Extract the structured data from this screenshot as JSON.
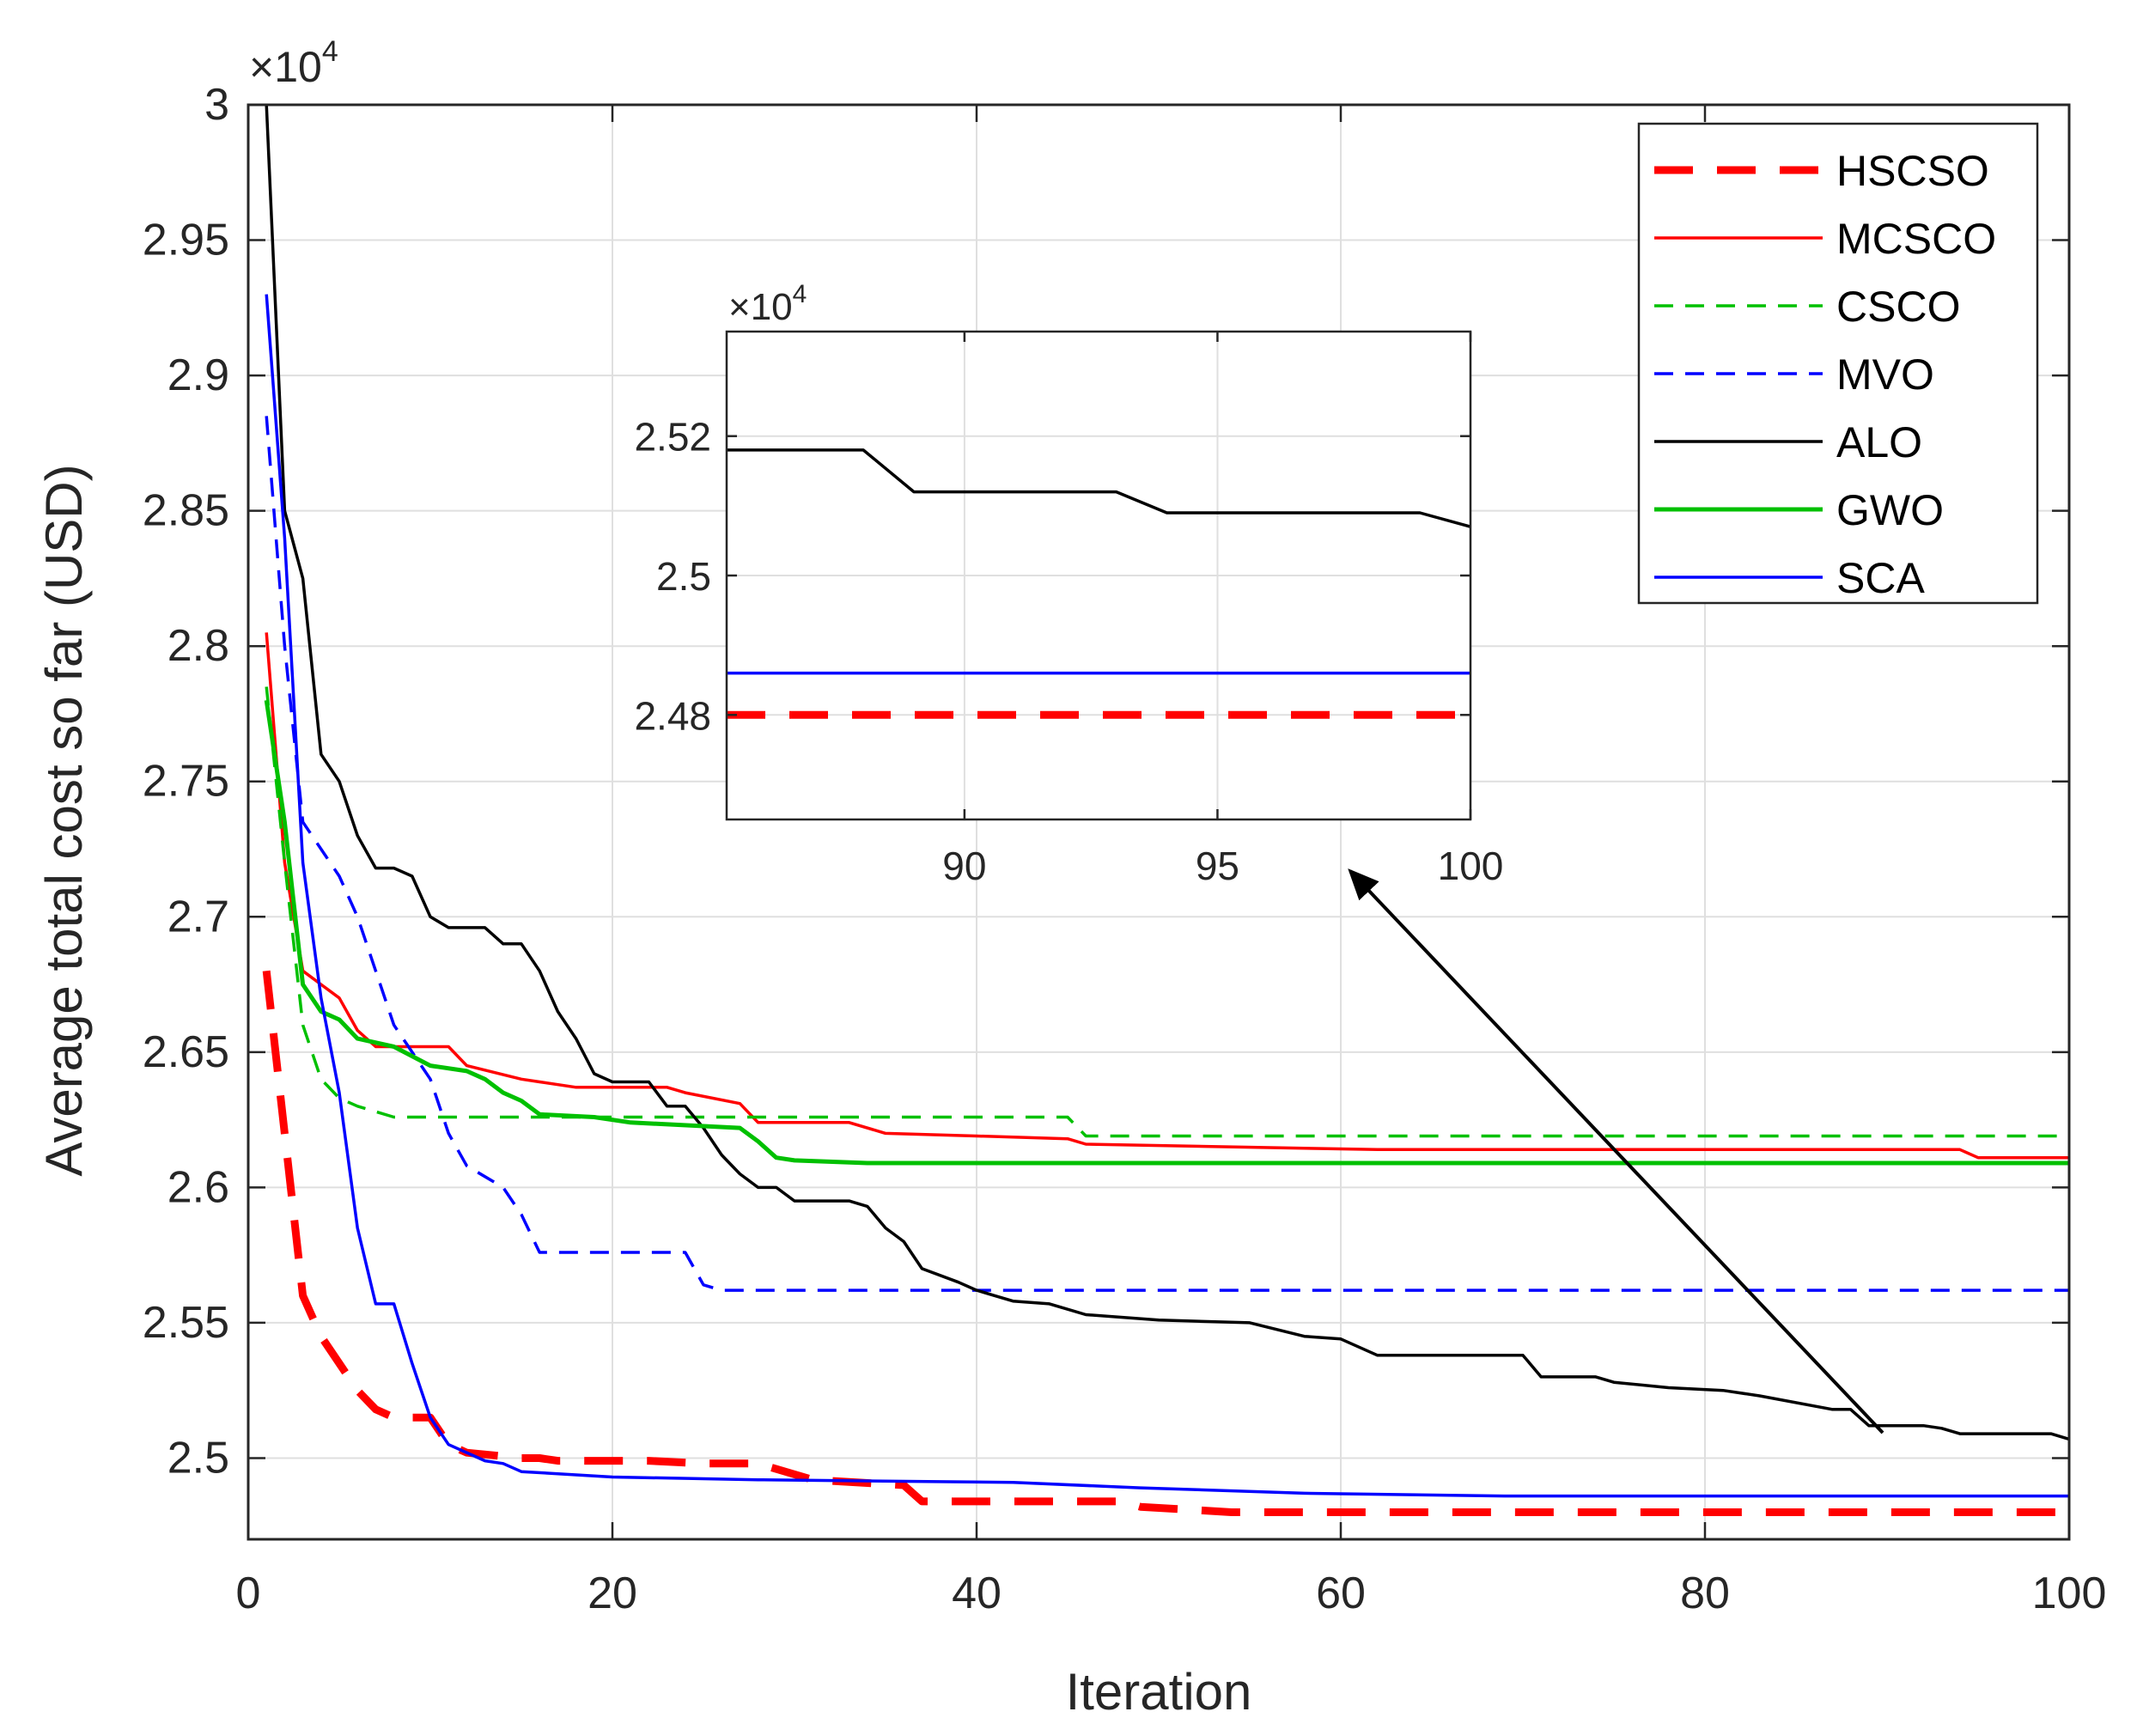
{
  "chart_data": {
    "type": "line",
    "xlabel": "Iteration",
    "ylabel": "Average total cost so far (USD)",
    "y_multiplier": "×10",
    "y_exponent": "4",
    "xlim": [
      0,
      100
    ],
    "ylim": [
      24.7,
      30.0
    ],
    "x_ticks": [
      0,
      20,
      40,
      60,
      80,
      100
    ],
    "y_ticks": [
      2.5,
      2.55,
      2.6,
      2.65,
      2.7,
      2.75,
      2.8,
      2.85,
      2.9,
      2.95,
      3
    ],
    "grid": true,
    "legend_position": "top-right",
    "colors": {
      "HSCSO": "#ff0000",
      "MCSCO": "#ff0000",
      "CSCO": "#00c000",
      "MVO": "#0000ff",
      "ALO": "#000000",
      "GWO": "#00c000",
      "SCA": "#0000ff"
    },
    "series": [
      {
        "name": "HSCSO",
        "style": "dashed-thick",
        "points": [
          [
            1,
            26.8
          ],
          [
            2,
            26.2
          ],
          [
            3,
            25.6
          ],
          [
            4,
            25.45
          ],
          [
            5,
            25.35
          ],
          [
            6,
            25.25
          ],
          [
            7,
            25.18
          ],
          [
            8,
            25.15
          ],
          [
            10,
            25.15
          ],
          [
            11,
            25.05
          ],
          [
            12,
            25.02
          ],
          [
            15,
            25.0
          ],
          [
            16,
            25.0
          ],
          [
            17,
            24.99
          ],
          [
            22,
            24.99
          ],
          [
            25,
            24.98
          ],
          [
            28,
            24.98
          ],
          [
            31,
            24.92
          ],
          [
            36,
            24.9
          ],
          [
            37,
            24.84
          ],
          [
            48,
            24.84
          ],
          [
            49,
            24.82
          ],
          [
            54,
            24.8
          ],
          [
            100,
            24.8
          ]
        ]
      },
      {
        "name": "MCSCO",
        "style": "solid",
        "points": [
          [
            1,
            28.05
          ],
          [
            2,
            27.2
          ],
          [
            3,
            26.8
          ],
          [
            4,
            26.75
          ],
          [
            5,
            26.7
          ],
          [
            6,
            26.58
          ],
          [
            7,
            26.52
          ],
          [
            11,
            26.52
          ],
          [
            12,
            26.45
          ],
          [
            15,
            26.4
          ],
          [
            16,
            26.39
          ],
          [
            18,
            26.37
          ],
          [
            23,
            26.37
          ],
          [
            24,
            26.35
          ],
          [
            27,
            26.31
          ],
          [
            28,
            26.24
          ],
          [
            33,
            26.24
          ],
          [
            35,
            26.2
          ],
          [
            40,
            26.19
          ],
          [
            45,
            26.18
          ],
          [
            46,
            26.16
          ],
          [
            62,
            26.14
          ],
          [
            94,
            26.14
          ],
          [
            95,
            26.11
          ],
          [
            100,
            26.11
          ]
        ]
      },
      {
        "name": "CSCO",
        "style": "dashed",
        "points": [
          [
            1,
            27.85
          ],
          [
            2,
            27.2
          ],
          [
            3,
            26.6
          ],
          [
            4,
            26.4
          ],
          [
            5,
            26.33
          ],
          [
            6,
            26.3
          ],
          [
            8,
            26.26
          ],
          [
            45,
            26.26
          ],
          [
            46,
            26.19
          ],
          [
            100,
            26.19
          ]
        ]
      },
      {
        "name": "MVO",
        "style": "dashed",
        "points": [
          [
            1,
            28.85
          ],
          [
            2,
            28.0
          ],
          [
            3,
            27.35
          ],
          [
            4,
            27.25
          ],
          [
            5,
            27.15
          ],
          [
            6,
            27.0
          ],
          [
            7,
            26.8
          ],
          [
            8,
            26.6
          ],
          [
            10,
            26.4
          ],
          [
            11,
            26.2
          ],
          [
            12,
            26.08
          ],
          [
            14,
            26.0
          ],
          [
            15,
            25.9
          ],
          [
            16,
            25.76
          ],
          [
            24,
            25.76
          ],
          [
            25,
            25.64
          ],
          [
            26,
            25.62
          ],
          [
            100,
            25.62
          ]
        ]
      },
      {
        "name": "ALO",
        "style": "solid",
        "points": [
          [
            1,
            30.0
          ],
          [
            2,
            28.5
          ],
          [
            3,
            28.25
          ],
          [
            4,
            27.6
          ],
          [
            5,
            27.5
          ],
          [
            6,
            27.3
          ],
          [
            7,
            27.18
          ],
          [
            8,
            27.18
          ],
          [
            9,
            27.15
          ],
          [
            10,
            27.0
          ],
          [
            11,
            26.96
          ],
          [
            13,
            26.96
          ],
          [
            14,
            26.9
          ],
          [
            15,
            26.9
          ],
          [
            16,
            26.8
          ],
          [
            17,
            26.65
          ],
          [
            18,
            26.55
          ],
          [
            19,
            26.42
          ],
          [
            20,
            26.39
          ],
          [
            22,
            26.39
          ],
          [
            23,
            26.3
          ],
          [
            24,
            26.3
          ],
          [
            25,
            26.22
          ],
          [
            26,
            26.12
          ],
          [
            27,
            26.05
          ],
          [
            28,
            26.0
          ],
          [
            29,
            26.0
          ],
          [
            30,
            25.95
          ],
          [
            33,
            25.95
          ],
          [
            34,
            25.93
          ],
          [
            35,
            25.85
          ],
          [
            36,
            25.8
          ],
          [
            37,
            25.7
          ],
          [
            39,
            25.65
          ],
          [
            40,
            25.62
          ],
          [
            41,
            25.6
          ],
          [
            42,
            25.58
          ],
          [
            44,
            25.57
          ],
          [
            46,
            25.53
          ],
          [
            50,
            25.51
          ],
          [
            55,
            25.5
          ],
          [
            58,
            25.45
          ],
          [
            60,
            25.44
          ],
          [
            62,
            25.38
          ],
          [
            70,
            25.38
          ],
          [
            71,
            25.3
          ],
          [
            74,
            25.3
          ],
          [
            75,
            25.28
          ],
          [
            78,
            25.26
          ],
          [
            81,
            25.25
          ],
          [
            83,
            25.23
          ],
          [
            87,
            25.18
          ],
          [
            88,
            25.18
          ],
          [
            89,
            25.12
          ],
          [
            92,
            25.12
          ],
          [
            93,
            25.11
          ],
          [
            94,
            25.09
          ],
          [
            99,
            25.09
          ],
          [
            100,
            25.07
          ]
        ]
      },
      {
        "name": "GWO",
        "style": "solid-thick",
        "points": [
          [
            1,
            27.8
          ],
          [
            2,
            27.35
          ],
          [
            3,
            26.75
          ],
          [
            4,
            26.65
          ],
          [
            5,
            26.62
          ],
          [
            6,
            26.55
          ],
          [
            8,
            26.52
          ],
          [
            10,
            26.45
          ],
          [
            12,
            26.43
          ],
          [
            13,
            26.4
          ],
          [
            14,
            26.35
          ],
          [
            15,
            26.32
          ],
          [
            16,
            26.27
          ],
          [
            19,
            26.26
          ],
          [
            21,
            26.24
          ],
          [
            27,
            26.22
          ],
          [
            28,
            26.17
          ],
          [
            29,
            26.11
          ],
          [
            30,
            26.1
          ],
          [
            34,
            26.09
          ],
          [
            100,
            26.09
          ]
        ]
      },
      {
        "name": "SCA",
        "style": "solid",
        "points": [
          [
            1,
            29.3
          ],
          [
            2,
            28.4
          ],
          [
            3,
            27.2
          ],
          [
            4,
            26.7
          ],
          [
            5,
            26.35
          ],
          [
            6,
            25.85
          ],
          [
            7,
            25.57
          ],
          [
            8,
            25.57
          ],
          [
            9,
            25.35
          ],
          [
            10,
            25.15
          ],
          [
            11,
            25.05
          ],
          [
            13,
            24.99
          ],
          [
            14,
            24.98
          ],
          [
            15,
            24.95
          ],
          [
            20,
            24.93
          ],
          [
            28,
            24.92
          ],
          [
            42,
            24.91
          ],
          [
            49,
            24.89
          ],
          [
            58,
            24.87
          ],
          [
            69,
            24.86
          ],
          [
            100,
            24.86
          ]
        ]
      }
    ],
    "inset": {
      "y_multiplier": "×10",
      "y_exponent": "4",
      "xlim": [
        85.3,
        100
      ],
      "ylim": [
        24.65,
        25.35
      ],
      "x_ticks": [
        90,
        95,
        100
      ],
      "y_ticks": [
        2.48,
        2.5,
        2.52
      ],
      "grid": true,
      "series": [
        {
          "name": "ALO",
          "style": "solid",
          "points": [
            [
              85.3,
              25.18
            ],
            [
              88,
              25.18
            ],
            [
              89,
              25.12
            ],
            [
              93,
              25.12
            ],
            [
              94,
              25.09
            ],
            [
              99,
              25.09
            ],
            [
              100,
              25.07
            ]
          ]
        },
        {
          "name": "SCA",
          "style": "solid",
          "points": [
            [
              85.3,
              24.86
            ],
            [
              100,
              24.86
            ]
          ]
        },
        {
          "name": "HSCSO",
          "style": "dashed-thick",
          "points": [
            [
              85.3,
              24.8
            ],
            [
              100,
              24.8
            ]
          ]
        }
      ]
    }
  }
}
